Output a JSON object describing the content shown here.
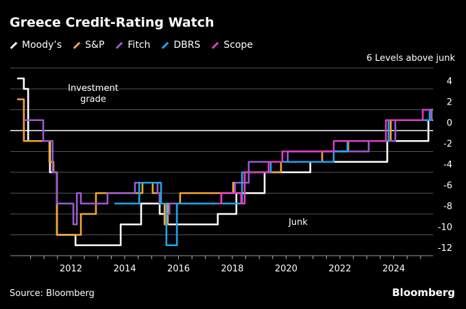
{
  "title": "Greece Credit-Rating Watch",
  "source": "Source: Bloomberg",
  "brand": "Bloomberg",
  "chart_data": {
    "type": "line",
    "title": "Greece Credit-Rating Watch",
    "unit_label": "6 Levels above junk",
    "ylim": [
      -12,
      6
    ],
    "yticks": [
      4,
      2,
      0,
      -2,
      -4,
      -6,
      -8,
      -10,
      -12
    ],
    "xlim": [
      2010.0,
      2025.46
    ],
    "xticks": [
      2012,
      2014,
      2016,
      2018,
      2020,
      2022,
      2024
    ],
    "grid": true,
    "legend": "top-left",
    "annotations": {
      "investment": [
        "Investment",
        "grade"
      ],
      "junk": "Junk"
    },
    "series": [
      {
        "name": "Moody’s",
        "color": "#ffffff",
        "steps": [
          [
            2010.0,
            5
          ],
          [
            2010.25,
            4
          ],
          [
            2010.41,
            -1
          ],
          [
            2011.22,
            -4
          ],
          [
            2011.48,
            -10
          ],
          [
            2012.17,
            -11
          ],
          [
            2013.85,
            -9
          ],
          [
            2014.61,
            -7
          ],
          [
            2015.3,
            -8
          ],
          [
            2015.55,
            -9
          ],
          [
            2017.46,
            -8
          ],
          [
            2018.15,
            -6
          ],
          [
            2019.2,
            -4
          ],
          [
            2020.9,
            -3
          ],
          [
            2023.76,
            -1
          ],
          [
            2025.29,
            1
          ],
          [
            2025.46,
            1
          ]
        ]
      },
      {
        "name": "S&P",
        "color": "#f7a533",
        "steps": [
          [
            2010.0,
            3
          ],
          [
            2010.25,
            -1
          ],
          [
            2011.2,
            -3
          ],
          [
            2011.35,
            -4
          ],
          [
            2011.48,
            -10
          ],
          [
            2012.09,
            -10
          ],
          [
            2012.37,
            -8
          ],
          [
            2012.93,
            -6
          ],
          [
            2014.66,
            -5
          ],
          [
            2015.04,
            -6
          ],
          [
            2015.3,
            -7
          ],
          [
            2015.48,
            -9
          ],
          [
            2015.6,
            -7
          ],
          [
            2016.06,
            -6
          ],
          [
            2018.03,
            -5
          ],
          [
            2018.46,
            -4
          ],
          [
            2019.81,
            -3
          ],
          [
            2021.34,
            -2
          ],
          [
            2022.31,
            -1
          ],
          [
            2023.89,
            1
          ],
          [
            2025.41,
            2
          ],
          [
            2025.46,
            2
          ]
        ]
      },
      {
        "name": "Fitch",
        "color": "#9a5bd0",
        "steps": [
          [
            2010.25,
            1
          ],
          [
            2010.97,
            -1
          ],
          [
            2011.32,
            -4
          ],
          [
            2011.48,
            -7
          ],
          [
            2012.09,
            -9
          ],
          [
            2012.22,
            -6
          ],
          [
            2012.37,
            -7
          ],
          [
            2013.36,
            -6
          ],
          [
            2014.38,
            -5
          ],
          [
            2015.22,
            -6
          ],
          [
            2015.3,
            -7
          ],
          [
            2015.55,
            -8
          ],
          [
            2015.66,
            -7
          ],
          [
            2017.59,
            -6
          ],
          [
            2018.1,
            -5
          ],
          [
            2018.61,
            -3
          ],
          [
            2020.06,
            -2
          ],
          [
            2023.07,
            -1
          ],
          [
            2024.06,
            1
          ],
          [
            2025.41,
            2
          ],
          [
            2025.46,
            2
          ]
        ]
      },
      {
        "name": "DBRS",
        "color": "#1ea6ea",
        "steps": [
          [
            2013.62,
            -7
          ],
          [
            2014.54,
            -5
          ],
          [
            2015.35,
            -7
          ],
          [
            2015.55,
            -11
          ],
          [
            2015.94,
            -7
          ],
          [
            2018.36,
            -4
          ],
          [
            2019.43,
            -3
          ],
          [
            2021.77,
            -2
          ],
          [
            2022.28,
            -1
          ],
          [
            2023.81,
            1
          ],
          [
            2025.34,
            2
          ],
          [
            2025.46,
            2
          ]
        ]
      },
      {
        "name": "Scope",
        "color": "#e33bc4",
        "steps": [
          [
            2017.46,
            -7
          ],
          [
            2017.59,
            -6
          ],
          [
            2018.33,
            -7
          ],
          [
            2018.46,
            -4
          ],
          [
            2019.35,
            -3
          ],
          [
            2019.86,
            -2
          ],
          [
            2021.77,
            -1
          ],
          [
            2023.71,
            1
          ],
          [
            2025.08,
            2
          ],
          [
            2025.46,
            2
          ]
        ]
      }
    ]
  }
}
